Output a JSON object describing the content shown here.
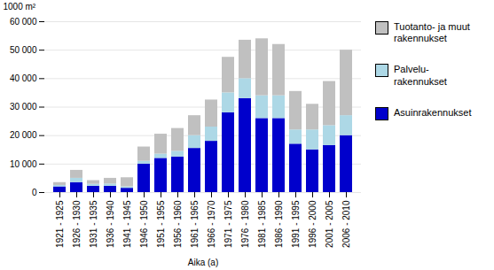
{
  "chart_data": {
    "type": "bar",
    "stacked": true,
    "ylabel": "1000 m²",
    "xlabel": "Aika (a)",
    "categories": [
      "1921 - 1925",
      "1926 - 1930",
      "1931 - 1935",
      "1936 - 1940",
      "1941 - 1945",
      "1946 - 1950",
      "1951 - 1955",
      "1956 - 1960",
      "1961 - 1965",
      "1966 - 1970",
      "1971 - 1975",
      "1976 - 1980",
      "1981 - 1985",
      "1986 - 1990",
      "1991 - 1995",
      "1996 - 2000",
      "2001 - 2005",
      "2006 - 2010"
    ],
    "series": [
      {
        "name": "Asuinrakennukset",
        "color": "#0000CC",
        "values": [
          2000,
          3500,
          2200,
          2200,
          1500,
          10000,
          12000,
          12500,
          15500,
          18000,
          28000,
          33000,
          26000,
          26000,
          17000,
          15000,
          16500,
          20000
        ]
      },
      {
        "name": "Palvelu-\nrakennukset",
        "color": "#ADD8E6",
        "values": [
          500,
          1500,
          700,
          800,
          500,
          1000,
          1500,
          2000,
          4500,
          5000,
          7000,
          7000,
          8000,
          8000,
          5000,
          7000,
          7000,
          7000
        ]
      },
      {
        "name": "Tuotanto- ja muut\nrakennukset",
        "color": "#C0C0C0",
        "values": [
          1000,
          2800,
          1300,
          2000,
          3200,
          5000,
          7000,
          8000,
          7000,
          9500,
          12500,
          13500,
          20000,
          18000,
          13500,
          9000,
          15500,
          23000
        ]
      }
    ],
    "ylim": [
      0,
      60000
    ],
    "yticks": [
      0,
      {
        "value": 10000,
        "label": "10 000"
      },
      {
        "value": 20000,
        "label": "20 000"
      },
      {
        "value": 30000,
        "label": "30 000"
      },
      {
        "value": 40000,
        "label": "40 000"
      },
      {
        "value": 50000,
        "label": "50 000"
      },
      {
        "value": 60000,
        "label": "60 000"
      }
    ],
    "grid": true,
    "legend": "right"
  }
}
